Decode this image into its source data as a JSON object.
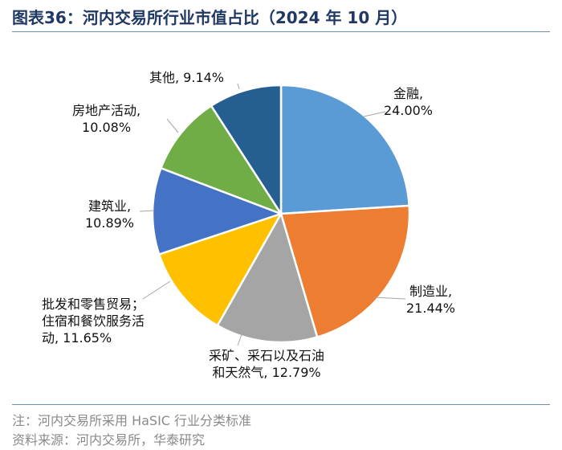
{
  "header": {
    "title": "图表36：河内交易所行业市值占比（2024 年 10 月）"
  },
  "footer": {
    "note": "注：河内交易所采用 HaSIC 行业分类标准",
    "source": "资料来源：河内交易所，华泰研究"
  },
  "chart_data": {
    "type": "pie",
    "start_angle_deg": 0,
    "direction": "clockwise",
    "slices": [
      {
        "name": "金融",
        "value": 24.0,
        "pct_text": "24.00%",
        "label_lines": [
          "金融,",
          "24.00%"
        ],
        "color": "#5b9bd5"
      },
      {
        "name": "制造业",
        "value": 21.44,
        "pct_text": "21.44%",
        "label_lines": [
          "制造业,",
          "21.44%"
        ],
        "color": "#ed7d31"
      },
      {
        "name": "采矿、采石以及石油和天然气",
        "value": 12.79,
        "pct_text": "12.79%",
        "label_lines": [
          "采矿、采石以及石油",
          "和天然气, 12.79%"
        ],
        "color": "#a5a5a5"
      },
      {
        "name": "批发和零售贸易；住宿和餐饮服务活动",
        "value": 11.65,
        "pct_text": "11.65%",
        "label_lines": [
          "批发和零售贸易；",
          "住宿和餐饮服务活",
          "动, 11.65%"
        ],
        "color": "#ffc000"
      },
      {
        "name": "建筑业",
        "value": 10.89,
        "pct_text": "10.89%",
        "label_lines": [
          "建筑业,",
          "10.89%"
        ],
        "color": "#4472c4"
      },
      {
        "name": "房地产活动",
        "value": 10.08,
        "pct_text": "10.08%",
        "label_lines": [
          "房地产活动,",
          "10.08%"
        ],
        "color": "#70ad47"
      },
      {
        "name": "其他",
        "value": 9.14,
        "pct_text": "9.14%",
        "label_lines": [
          "其他, 9.14%"
        ],
        "color": "#255e91"
      }
    ]
  }
}
